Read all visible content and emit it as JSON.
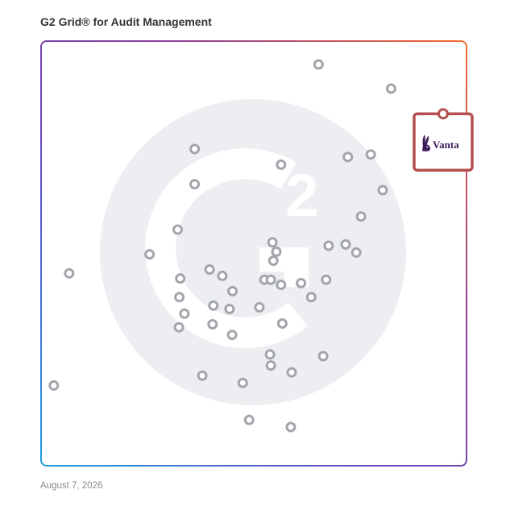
{
  "title": "G2 Grid® for Audit Management",
  "date": "August 7, 2026",
  "watermark": {
    "icon": "g2-logo-icon",
    "color": "#eceef1"
  },
  "colors": {
    "frame_gradient": [
      "#1e9be0",
      "#6a45b8",
      "#8a3e9a",
      "#f36b2e"
    ],
    "marker_stroke": "#a2a5ab",
    "highlight": "#b3504e",
    "vanta_brand": "#3b1a5c"
  },
  "chart_data": {
    "type": "scatter",
    "title": "G2 Grid® for Audit Management",
    "xlabel": "",
    "ylabel": "",
    "xlim": [
      0,
      100
    ],
    "ylim": [
      0,
      100
    ],
    "grid": "quadrants",
    "quadrant_dividers": {
      "x": 50,
      "y": 50
    },
    "points": [
      {
        "x": 65.2,
        "y": 94.5
      },
      {
        "x": 82.3,
        "y": 88.8
      },
      {
        "x": 36.1,
        "y": 74.6
      },
      {
        "x": 56.4,
        "y": 70.9
      },
      {
        "x": 72.1,
        "y": 72.7
      },
      {
        "x": 77.5,
        "y": 73.3
      },
      {
        "x": 36.1,
        "y": 66.3
      },
      {
        "x": 80.3,
        "y": 64.9
      },
      {
        "x": 75.2,
        "y": 58.7
      },
      {
        "x": 32.1,
        "y": 55.6
      },
      {
        "x": 54.4,
        "y": 52.6
      },
      {
        "x": 67.6,
        "y": 51.8
      },
      {
        "x": 71.6,
        "y": 52.1
      },
      {
        "x": 55.3,
        "y": 50.4
      },
      {
        "x": 74.1,
        "y": 50.2
      },
      {
        "x": 25.5,
        "y": 49.8
      },
      {
        "x": 54.6,
        "y": 48.3
      },
      {
        "x": 6.6,
        "y": 45.3
      },
      {
        "x": 39.6,
        "y": 46.2
      },
      {
        "x": 42.6,
        "y": 44.7
      },
      {
        "x": 32.7,
        "y": 44.1
      },
      {
        "x": 52.5,
        "y": 43.8
      },
      {
        "x": 54.0,
        "y": 43.8
      },
      {
        "x": 56.4,
        "y": 42.6
      },
      {
        "x": 61.1,
        "y": 43.0
      },
      {
        "x": 67.0,
        "y": 43.8
      },
      {
        "x": 45.0,
        "y": 41.1
      },
      {
        "x": 32.5,
        "y": 39.7
      },
      {
        "x": 63.5,
        "y": 39.7
      },
      {
        "x": 40.5,
        "y": 37.7
      },
      {
        "x": 44.3,
        "y": 36.9
      },
      {
        "x": 51.3,
        "y": 37.3
      },
      {
        "x": 33.7,
        "y": 35.8
      },
      {
        "x": 56.7,
        "y": 33.5
      },
      {
        "x": 32.4,
        "y": 32.6
      },
      {
        "x": 40.3,
        "y": 33.3
      },
      {
        "x": 44.9,
        "y": 30.8
      },
      {
        "x": 53.8,
        "y": 26.2
      },
      {
        "x": 66.3,
        "y": 25.8
      },
      {
        "x": 54.0,
        "y": 23.6
      },
      {
        "x": 58.9,
        "y": 22.0
      },
      {
        "x": 37.9,
        "y": 21.2
      },
      {
        "x": 47.4,
        "y": 19.5
      },
      {
        "x": 3.0,
        "y": 18.9
      },
      {
        "x": 48.9,
        "y": 10.8
      },
      {
        "x": 58.7,
        "y": 9.1
      }
    ],
    "highlighted": {
      "label": "Vanta",
      "logo_icon": "vanta-rabbit-logo-icon",
      "x": 94.5,
      "y": 82.5
    }
  }
}
